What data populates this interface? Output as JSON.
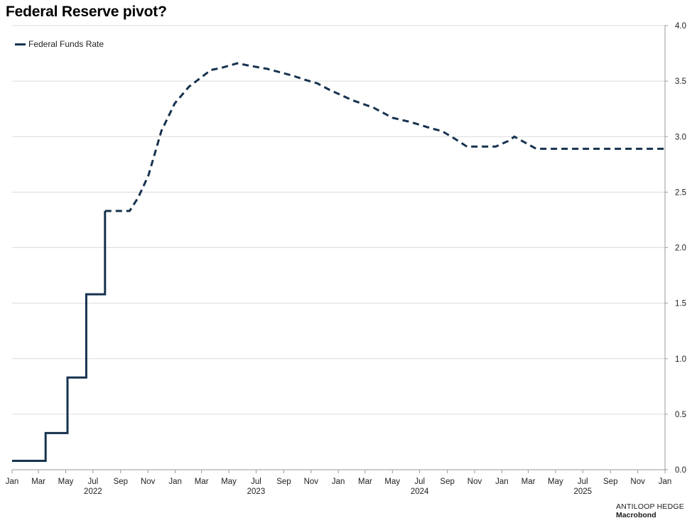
{
  "chart_data": {
    "type": "line",
    "title": "Federal Reserve pivot?",
    "y_axis_side": "right",
    "ylim": [
      0.0,
      4.0
    ],
    "y_ticks": [
      "0.0",
      "0.5",
      "1.0",
      "1.5",
      "2.0",
      "2.5",
      "3.0",
      "3.5",
      "4.0"
    ],
    "x_ticks": [
      "Jan",
      "Mar",
      "May",
      "Jul",
      "Sep",
      "Nov",
      "Jan",
      "Mar",
      "May",
      "Jul",
      "Sep",
      "Nov",
      "Jan",
      "Mar",
      "May",
      "Jul",
      "Sep",
      "Nov",
      "Jan",
      "Mar",
      "May",
      "Jul",
      "Sep",
      "Nov",
      "Jan"
    ],
    "x_years": [
      "2022",
      "2023",
      "2024",
      "2025"
    ],
    "grid": "horizontal",
    "legend_position": "top-left",
    "series": [
      {
        "name": "Federal Funds Rate",
        "color": "#17324f",
        "style": "solid",
        "points": [
          [
            "2022-01-01",
            0.08
          ],
          [
            "2022-03-17",
            0.08
          ],
          [
            "2022-03-17",
            0.33
          ],
          [
            "2022-05-05",
            0.33
          ],
          [
            "2022-05-05",
            0.83
          ],
          [
            "2022-06-16",
            0.83
          ],
          [
            "2022-06-16",
            1.58
          ],
          [
            "2022-07-28",
            1.58
          ],
          [
            "2022-07-28",
            2.33
          ]
        ]
      },
      {
        "name": "",
        "color": "#17324f",
        "style": "dashed",
        "points": [
          [
            "2022-07-28",
            2.33
          ],
          [
            "2022-09-21",
            2.33
          ],
          [
            "2022-10-10",
            2.45
          ],
          [
            "2022-11-02",
            2.65
          ],
          [
            "2022-12-01",
            3.05
          ],
          [
            "2022-12-31",
            3.3
          ],
          [
            "2023-02-01",
            3.45
          ],
          [
            "2023-03-22",
            3.6
          ],
          [
            "2023-04-15",
            3.62
          ],
          [
            "2023-05-20",
            3.66
          ],
          [
            "2023-06-15",
            3.64
          ],
          [
            "2023-07-26",
            3.61
          ],
          [
            "2023-09-20",
            3.55
          ],
          [
            "2023-10-20",
            3.51
          ],
          [
            "2023-11-15",
            3.48
          ],
          [
            "2023-12-13",
            3.42
          ],
          [
            "2024-01-31",
            3.33
          ],
          [
            "2024-03-20",
            3.26
          ],
          [
            "2024-05-01",
            3.17
          ],
          [
            "2024-06-12",
            3.13
          ],
          [
            "2024-07-31",
            3.07
          ],
          [
            "2024-08-20",
            3.05
          ],
          [
            "2024-09-18",
            2.98
          ],
          [
            "2024-10-15",
            2.91
          ],
          [
            "2024-12-18",
            2.91
          ],
          [
            "2025-01-15",
            2.96
          ],
          [
            "2025-01-29",
            3.0
          ],
          [
            "2025-03-19",
            2.89
          ],
          [
            "2025-12-31",
            2.89
          ]
        ]
      }
    ]
  },
  "legend": {
    "label": "Federal Funds Rate"
  },
  "footer": {
    "brand": "ANTILOOP HEDGE",
    "source": "Macrobond"
  }
}
